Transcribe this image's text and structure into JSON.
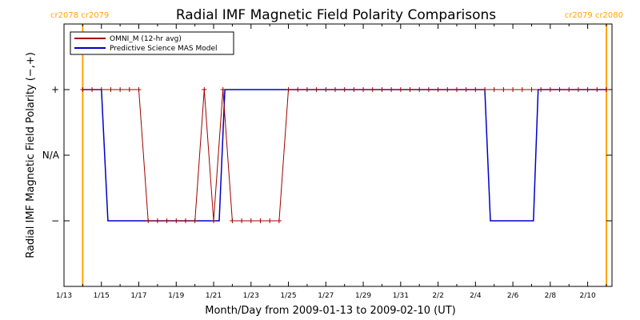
{
  "chart_data": {
    "type": "line",
    "title": "Radial IMF Magnetic Field Polarity Comparisons",
    "xlabel": "Month/Day from 2009-01-13 to 2009-02-10 (UT)",
    "ylabel": "Radial IMF Magnetic Field Polarity (−,+)",
    "xlim": [
      0,
      29.3
    ],
    "ylim": [
      -2,
      2
    ],
    "x_ticks": [
      {
        "value": 0,
        "label": "1/13"
      },
      {
        "value": 2,
        "label": "1/15"
      },
      {
        "value": 4,
        "label": "1/17"
      },
      {
        "value": 6,
        "label": "1/19"
      },
      {
        "value": 8,
        "label": "1/21"
      },
      {
        "value": 10,
        "label": "1/23"
      },
      {
        "value": 12,
        "label": "1/25"
      },
      {
        "value": 14,
        "label": "1/27"
      },
      {
        "value": 16,
        "label": "1/29"
      },
      {
        "value": 18,
        "label": "1/31"
      },
      {
        "value": 20,
        "label": "2/2"
      },
      {
        "value": 22,
        "label": "2/4"
      },
      {
        "value": 24,
        "label": "2/6"
      },
      {
        "value": 26,
        "label": "2/8"
      },
      {
        "value": 28,
        "label": "2/10"
      }
    ],
    "y_ticks": [
      {
        "value": 1,
        "label": "+"
      },
      {
        "value": 0,
        "label": "N/A"
      },
      {
        "value": -1,
        "label": "−"
      }
    ],
    "carrington_markers": [
      {
        "x": 1.0,
        "left_label": "cr2078",
        "right_label": "cr2079",
        "color": "#ffa500"
      },
      {
        "x": 29.0,
        "left_label": "cr2079",
        "right_label": "cr2080",
        "color": "#ffa500"
      }
    ],
    "legend_position": "top-left",
    "series": [
      {
        "name": "OMNI_M (12-hr avg)",
        "color": "#a00000",
        "marker": "plus",
        "x": [
          1.0,
          1.5,
          2.0,
          2.5,
          3.0,
          3.5,
          4.0,
          4.5,
          5.0,
          5.5,
          6.0,
          6.5,
          7.0,
          7.5,
          8.0,
          8.5,
          9.0,
          9.5,
          10.0,
          10.5,
          11.0,
          11.5,
          12.0,
          12.5,
          13.0,
          13.5,
          14.0,
          14.5,
          15.0,
          15.5,
          16.0,
          16.5,
          17.0,
          17.5,
          18.0,
          18.5,
          19.0,
          19.5,
          20.0,
          20.5,
          21.0,
          21.5,
          22.0,
          22.5,
          23.0,
          23.5,
          24.0,
          24.5,
          25.0,
          25.5,
          26.0,
          26.5,
          27.0,
          27.5,
          28.0,
          28.5,
          29.0
        ],
        "y": [
          1,
          1,
          1,
          1,
          1,
          1,
          1,
          -1,
          -1,
          -1,
          -1,
          -1,
          -1,
          1,
          -1,
          1,
          -1,
          -1,
          -1,
          -1,
          -1,
          -1,
          1,
          1,
          1,
          1,
          1,
          1,
          1,
          1,
          1,
          1,
          1,
          1,
          1,
          1,
          1,
          1,
          1,
          1,
          1,
          1,
          1,
          1,
          1,
          1,
          1,
          1,
          1,
          1,
          1,
          1,
          1,
          1,
          1,
          1,
          1
        ]
      },
      {
        "name": "Predictive Science MAS Model",
        "color": "#0000c8",
        "x": [
          1.0,
          2.0,
          2.35,
          8.3,
          8.6,
          22.5,
          22.8,
          25.1,
          25.35,
          29.0
        ],
        "y": [
          1,
          1,
          -1,
          -1,
          1,
          1,
          -1,
          -1,
          1,
          1
        ]
      }
    ]
  }
}
